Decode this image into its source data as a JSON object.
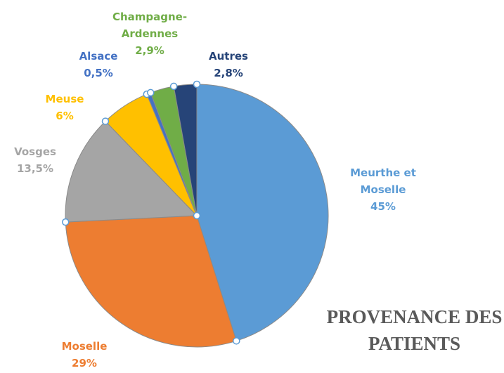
{
  "chart_data": {
    "type": "pie",
    "title": "PROVENANCE DES PATIENTS",
    "categories": [
      "Meurthe et Moselle",
      "Moselle",
      "Vosges",
      "Meuse",
      "Alsace",
      "Champagne-Ardennes",
      "Autres"
    ],
    "values": [
      45,
      29,
      13.5,
      6,
      0.5,
      2.9,
      2.8
    ],
    "value_labels": [
      "45%",
      "29%",
      "13,5%",
      "6%",
      "0,5%",
      "2,9%",
      "2,8%"
    ],
    "colors": [
      "#5b9bd5",
      "#ed7d31",
      "#a5a5a5",
      "#ffc000",
      "#4472c4",
      "#70ad47",
      "#264478"
    ]
  }
}
